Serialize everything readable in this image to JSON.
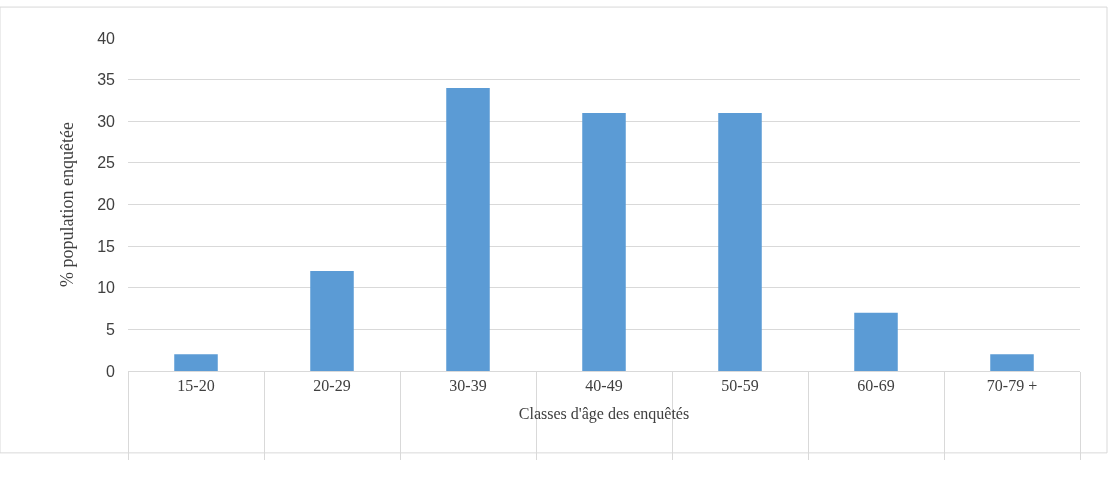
{
  "chart_data": {
    "type": "bar",
    "xlabel": "Classes d'âge des enquêtés",
    "ylabel": "% population enquêtée",
    "categories": [
      "15-20",
      "20-29",
      "30-39",
      "40-49",
      "50-59",
      "60-69",
      "70-79 +"
    ],
    "values": [
      2,
      12,
      34,
      31,
      31,
      7,
      2
    ],
    "color": "#5b9bd5",
    "ylim": [
      0,
      40
    ],
    "yticks": [
      0,
      5,
      10,
      15,
      20,
      25,
      30,
      35,
      40
    ],
    "grid": "y",
    "legend": false
  }
}
